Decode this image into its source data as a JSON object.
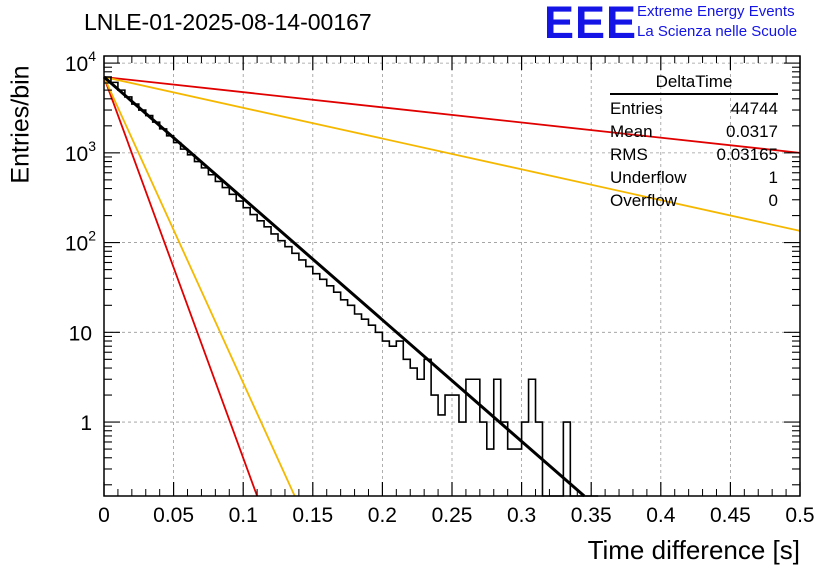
{
  "header": {
    "title": "LNLE-01-2025-08-14-00167",
    "logo_text": "EEE",
    "org_line1": "Extreme Energy Events",
    "org_line2": "La Scienza nelle Scuole"
  },
  "stats": {
    "title": "DeltaTime",
    "rows": [
      {
        "label": "Entries",
        "value": "44744"
      },
      {
        "label": "Mean",
        "value": "0.0317"
      },
      {
        "label": "RMS",
        "value": "0.03165"
      },
      {
        "label": "Underflow",
        "value": "1"
      },
      {
        "label": "Overflow",
        "value": "0"
      }
    ]
  },
  "colors": {
    "histogram": "#000000",
    "fit": "#000000",
    "red_line": "#e00000",
    "orange_line": "#f5b800",
    "grid": "#9a9a9a",
    "logo": "#1414e6"
  },
  "chart_data": {
    "type": "line",
    "xlabel": "Time difference [s]",
    "ylabel": "Entries/bin",
    "xlim": [
      0,
      0.5
    ],
    "ylim": [
      0.15,
      12000
    ],
    "yscale": "log",
    "x_ticks": [
      "0",
      "0.05",
      "0.1",
      "0.15",
      "0.2",
      "0.25",
      "0.3",
      "0.35",
      "0.4",
      "0.45",
      "0.5"
    ],
    "y_ticks": [
      {
        "value": 1,
        "label": "1"
      },
      {
        "value": 10,
        "label": "10"
      },
      {
        "value": 100,
        "label": "10",
        "exponent": "2"
      },
      {
        "value": 1000,
        "label": "10",
        "exponent": "3"
      },
      {
        "value": 10000,
        "label": "10",
        "exponent": "4"
      }
    ],
    "grid": true,
    "histogram": {
      "name": "DeltaTime",
      "bin_width": 0.005,
      "x_start": 0,
      "counts": [
        7000,
        6100,
        5000,
        4200,
        3500,
        3000,
        2600,
        2200,
        1850,
        1550,
        1300,
        1100,
        950,
        800,
        680,
        570,
        480,
        410,
        345,
        290,
        245,
        205,
        175,
        150,
        125,
        105,
        90,
        76,
        64,
        54,
        45,
        39,
        33,
        28,
        23,
        20,
        16,
        14,
        12,
        10,
        8,
        7,
        8,
        5,
        4,
        3,
        5,
        2,
        1.2,
        2,
        2,
        1,
        3,
        3,
        1,
        0.5,
        3,
        1,
        0.5,
        0.5,
        1,
        3,
        1,
        0,
        0,
        0,
        1,
        0,
        0,
        0,
        0
      ]
    },
    "series": [
      {
        "name": "fit",
        "color": "#000000",
        "x": [
          0,
          0.345
        ],
        "y": [
          7000,
          0.15
        ]
      },
      {
        "name": "red-steep",
        "color": "#e00000",
        "x": [
          0,
          0.11
        ],
        "y": [
          7000,
          0.15
        ]
      },
      {
        "name": "orange-steep",
        "color": "#f5b800",
        "x": [
          0,
          0.137
        ],
        "y": [
          7000,
          0.15
        ]
      },
      {
        "name": "red-shallow",
        "color": "#e00000",
        "x": [
          0,
          0.5
        ],
        "y": [
          7000,
          1000
        ]
      },
      {
        "name": "orange-shallow",
        "color": "#f5b800",
        "x": [
          0,
          0.5
        ],
        "y": [
          7000,
          135
        ]
      }
    ]
  }
}
